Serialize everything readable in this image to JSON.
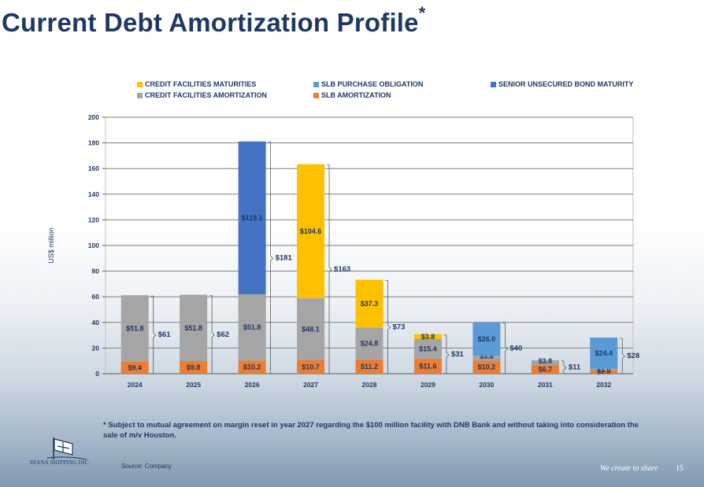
{
  "title": "Current Debt Amortization Profile",
  "title_marker": "*",
  "legend": {
    "credit_maturities": "CREDIT FACILITIES MATURITIES",
    "credit_amortization": "CREDIT FACILITIES AMORTIZATION",
    "slb_purchase": "SLB PURCHASE OBLIGATION",
    "slb_amortization": "SLB AMORTIZATION",
    "bond_maturity": "SENIOR UNSECURED BOND MATURITY"
  },
  "colors": {
    "slb_amortization": "#ed7d31",
    "credit_amortization": "#a5a5a5",
    "credit_maturities": "#ffc000",
    "slb_purchase": "#5b9bd5",
    "bond_maturity": "#4472c4",
    "label_text": "#1f3864",
    "grid": "#7f7f7f"
  },
  "chart_data": {
    "type": "bar",
    "stacked": true,
    "ylabel": "US$ million",
    "ylim": [
      0,
      200
    ],
    "yticks": [
      0,
      20,
      40,
      60,
      80,
      100,
      120,
      140,
      160,
      180,
      200
    ],
    "categories": [
      "2024",
      "2025",
      "2026",
      "2027",
      "2028",
      "2029",
      "2030",
      "2031",
      "2032"
    ],
    "series": [
      {
        "name": "SLB AMORTIZATION",
        "key": "slb_amortization",
        "values": [
          9.4,
          9.8,
          10.2,
          10.7,
          11.2,
          11.6,
          10.2,
          6.7,
          2.8
        ],
        "labels": [
          "$9.4",
          "$9.8",
          "$10.2",
          "$10.7",
          "$11.2",
          "$11.6",
          "$10.2",
          "$6.7",
          "$2.8"
        ]
      },
      {
        "name": "CREDIT FACILITIES AMORTIZATION",
        "key": "credit_amortization",
        "values": [
          51.8,
          51.8,
          51.8,
          48.1,
          24.8,
          15.4,
          3.8,
          3.8,
          1.0
        ],
        "labels": [
          "$51.8",
          "$51.8",
          "$51.8",
          "$48.1",
          "$24.8",
          "$15.4",
          "$3.8",
          "$3.8",
          "$1.0"
        ]
      },
      {
        "name": "CREDIT FACILITIES MATURITIES",
        "key": "credit_maturities",
        "values": [
          0,
          0,
          0,
          104.6,
          37.3,
          3.8,
          0,
          0,
          0
        ],
        "labels": [
          "",
          "",
          "",
          "$104.6",
          "$37.3",
          "$3.8",
          "",
          "",
          ""
        ]
      },
      {
        "name": "SLB PURCHASE OBLIGATION",
        "key": "slb_purchase",
        "values": [
          0,
          0,
          0,
          0,
          0,
          0,
          26.0,
          0,
          24.4
        ],
        "labels": [
          "",
          "",
          "",
          "",
          "",
          "",
          "$26.0",
          "",
          "$24.4"
        ]
      },
      {
        "name": "SENIOR UNSECURED BOND MATURITY",
        "key": "bond_maturity",
        "values": [
          0,
          0,
          119.1,
          0,
          0,
          0,
          0,
          0,
          0
        ],
        "labels": [
          "",
          "",
          "$119.1",
          "",
          "",
          "",
          "",
          "",
          ""
        ]
      }
    ],
    "totals": [
      61,
      62,
      181,
      163,
      73,
      31,
      40,
      11,
      28
    ],
    "total_labels": [
      "$61",
      "$62",
      "$181",
      "$163",
      "$73",
      "$31",
      "$40",
      "$11",
      "$28"
    ]
  },
  "footnote": "*  Subject to mutual agreement on margin reset in year 2027 regarding the $100 million facility with DNB Bank and without taking into consideration the sale of m/v Houston.",
  "source": "Source: Company",
  "logo_text": "DIANA SHIPPING INC.",
  "slogan": "We create to share",
  "page_number": "15"
}
